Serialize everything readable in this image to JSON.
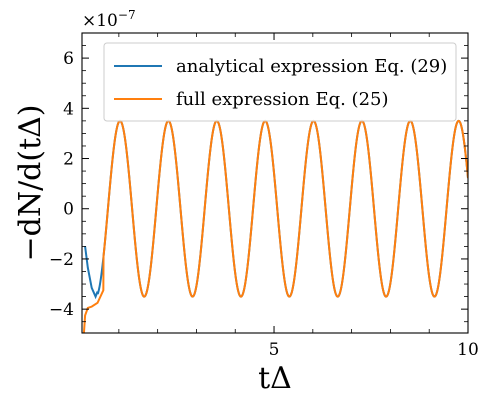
{
  "chart_data": {
    "type": "line",
    "xlabel": "tΔ",
    "ylabel": "−dN/d(tΔ)",
    "y_offset_label": "×10",
    "y_offset_exponent": "−7",
    "xlim": [
      0.05,
      10
    ],
    "ylim": [
      -4.95,
      7.0
    ],
    "y_unit_scale": 1e-07,
    "x_ticks": [
      5,
      10
    ],
    "x_tick_labels": [
      "5",
      "10"
    ],
    "y_ticks": [
      -4,
      -2,
      0,
      2,
      4,
      6
    ],
    "y_tick_labels": [
      "−4",
      "−2",
      "0",
      "2",
      "4",
      "6"
    ],
    "grid": false,
    "legend_position": "top-right",
    "oscillation": {
      "amplitude": 3.5,
      "period": 1.247,
      "peak_x": 1.03
    },
    "series": [
      {
        "name": "analytical expression Eq. (29)",
        "color": "#1f77b4",
        "x": [
          0.13,
          0.2,
          0.3,
          0.4,
          0.45
        ],
        "y": [
          -1.5,
          -2.35,
          -3.15,
          -3.5,
          -3.3
        ]
      },
      {
        "name": "full expression Eq. (25)",
        "color": "#ff7f0e",
        "x": [
          0.1,
          0.13,
          0.2,
          0.3,
          0.45,
          0.6
        ],
        "y": [
          -4.95,
          -4.25,
          -3.95,
          -3.9,
          -3.75,
          -3.25
        ]
      }
    ]
  }
}
